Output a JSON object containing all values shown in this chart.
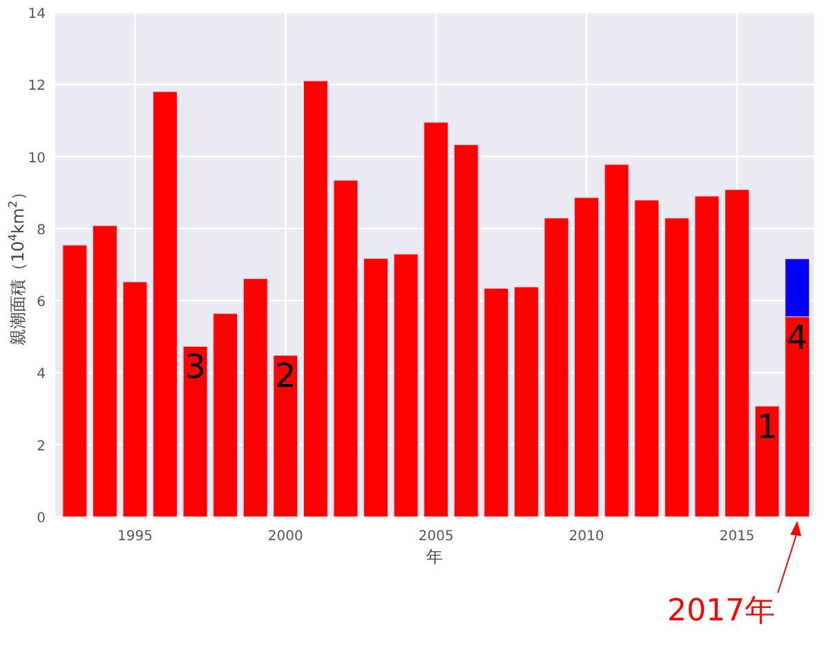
{
  "chart_data": {
    "type": "bar",
    "stacked": true,
    "xlabel": "年",
    "ylabel": "親潮面積（10$^{4}$km$^{2}$）",
    "x": [
      1993,
      1994,
      1995,
      1996,
      1997,
      1998,
      1999,
      2000,
      2001,
      2002,
      2003,
      2004,
      2005,
      2006,
      2007,
      2008,
      2009,
      2010,
      2011,
      2012,
      2013,
      2014,
      2015,
      2016,
      2017
    ],
    "series": [
      {
        "color": "#ff0000",
        "values": [
          7.54,
          8.08,
          6.52,
          11.8,
          4.73,
          5.64,
          6.61,
          4.48,
          12.1,
          9.34,
          7.17,
          7.29,
          10.95,
          10.33,
          6.34,
          6.38,
          8.29,
          8.86,
          9.78,
          8.79,
          8.29,
          8.9,
          9.08,
          3.07,
          5.55
        ]
      },
      {
        "color": "#0000ff",
        "values": [
          null,
          null,
          null,
          null,
          null,
          null,
          null,
          null,
          null,
          null,
          null,
          null,
          null,
          null,
          null,
          null,
          null,
          null,
          null,
          null,
          null,
          null,
          null,
          null,
          1.61
        ]
      }
    ],
    "xlim": [
      1992.35,
      2017.55
    ],
    "ylim": [
      0,
      14
    ],
    "xticks": [
      1995,
      2000,
      2005,
      2010,
      2015
    ],
    "yticks": [
      0,
      2,
      4,
      6,
      8,
      10,
      12,
      14
    ],
    "grid": true,
    "annotations": [
      {
        "text": "3",
        "x": 1997,
        "y": 4.73
      },
      {
        "text": "2",
        "x": 2000,
        "y": 4.48
      },
      {
        "text": "1",
        "x": 2016,
        "y": 3.07
      },
      {
        "text": "4",
        "x": 2017,
        "y": 5.55
      },
      {
        "text": "2017年",
        "x": 2017,
        "y": 0
      }
    ]
  }
}
